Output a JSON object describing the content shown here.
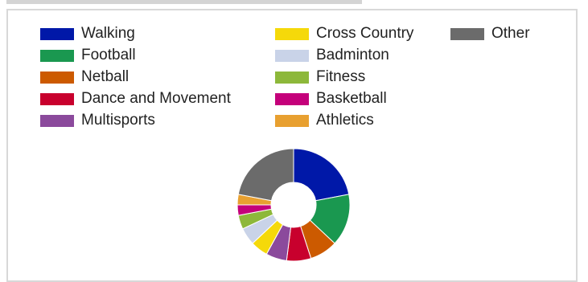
{
  "chart_data": {
    "type": "pie",
    "title": "",
    "donut": true,
    "legend_position": "top",
    "categories": [
      "Walking",
      "Football",
      "Netball",
      "Dance and Movement",
      "Multisports",
      "Cross Country",
      "Badminton",
      "Fitness",
      "Basketball",
      "Athletics",
      "Other"
    ],
    "values": [
      22,
      15,
      8,
      7,
      6,
      5,
      5,
      4,
      3,
      3,
      22
    ],
    "colors": [
      "#0018a8",
      "#1a9850",
      "#cc5a00",
      "#c8002d",
      "#8b4a9c",
      "#f5d90a",
      "#c9d3e8",
      "#8db83a",
      "#c4007a",
      "#e8a030",
      "#6b6b6b"
    ]
  }
}
